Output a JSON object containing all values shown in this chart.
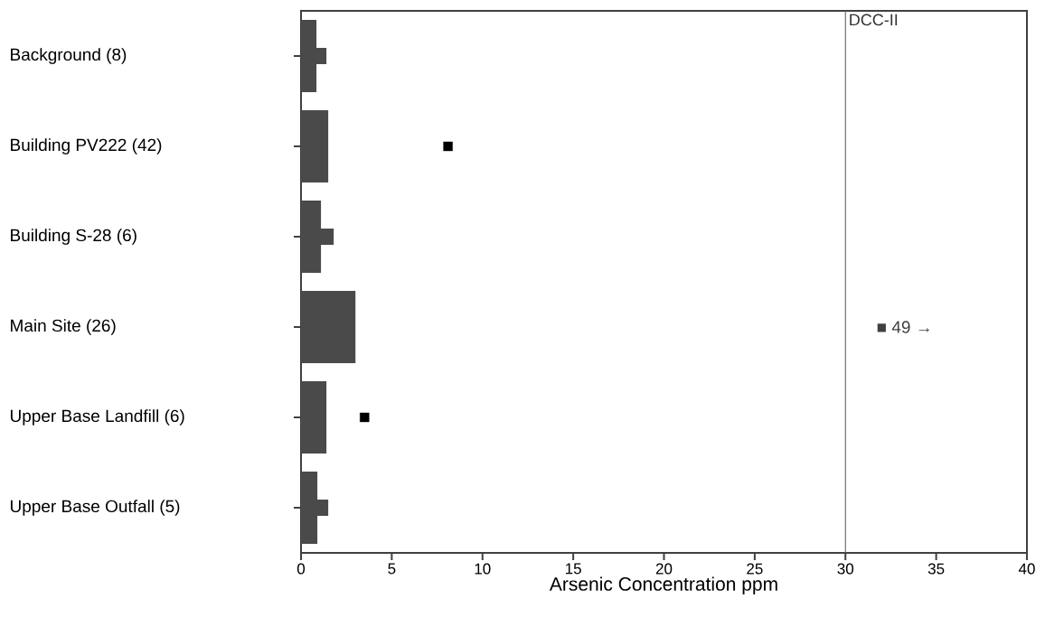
{
  "chart_data": {
    "type": "bar",
    "orientation": "horizontal",
    "categories": [
      "Background (8)",
      "Building PV222 (42)",
      "Building S-28 (6)",
      "Main Site (26)",
      "Upper Base Landfill (6)",
      "Upper Base Outfall (5)"
    ],
    "series": [
      {
        "color": "#4a4a4a",
        "values": [
          0.85,
          1.5,
          1.1,
          3.0,
          1.4,
          0.9
        ]
      },
      {
        "color": "#4a4a4a",
        "values": [
          1.4,
          null,
          1.8,
          null,
          null,
          1.5
        ]
      },
      {
        "type": "scatter",
        "color": "#000000",
        "marker": "square",
        "values": [
          null,
          8.1,
          null,
          null,
          3.5,
          null
        ]
      }
    ],
    "xlabel": "Arsenic Concentration ppm",
    "xlim": [
      0,
      40
    ],
    "xticks": [
      0,
      5,
      10,
      15,
      20,
      25,
      30,
      35,
      40
    ],
    "ref_lines": [
      {
        "axis": "x",
        "value": 30,
        "label": "DCC-II",
        "color": "#555555"
      }
    ],
    "annotations": [
      "■ 49 →"
    ],
    "grid": false
  }
}
